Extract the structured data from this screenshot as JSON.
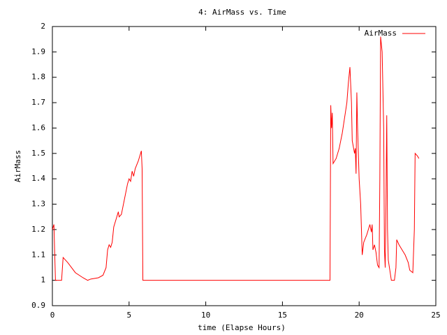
{
  "chart_data": {
    "type": "line",
    "title": "4: AirMass vs. Time",
    "xlabel": "time (Elapse Hours)",
    "ylabel": "AirMass",
    "xlim": [
      0,
      25
    ],
    "xticks": [
      0,
      5,
      10,
      15,
      20,
      25
    ],
    "ylim": [
      0.9,
      2
    ],
    "yticks": [
      0.9,
      1,
      1.1,
      1.2,
      1.3,
      1.4,
      1.5,
      1.6,
      1.7,
      1.8,
      1.9,
      2
    ],
    "legend": "top-right",
    "grid": false,
    "x": [
      0,
      0.1,
      0.2,
      0.6,
      0.7,
      1,
      1.5,
      2,
      2.3,
      2.5,
      3,
      3.3,
      3.5,
      3.6,
      3.7,
      3.8,
      3.9,
      4.0,
      4.2,
      4.3,
      4.35,
      4.5,
      4.7,
      4.9,
      5.0,
      5.1,
      5.2,
      5.3,
      5.4,
      5.6,
      5.8,
      5.85,
      5.9,
      18.1,
      18.15,
      18.2,
      18.25,
      18.3,
      18.5,
      18.7,
      18.9,
      19.0,
      19.1,
      19.2,
      19.3,
      19.4,
      19.5,
      19.55,
      19.7,
      19.75,
      19.8,
      19.85,
      19.9,
      20.0,
      20.1,
      20.2,
      20.3,
      20.5,
      20.6,
      20.7,
      20.8,
      20.85,
      20.9,
      21.0,
      21.1,
      21.2,
      21.3,
      21.35,
      21.4,
      21.5,
      21.6,
      21.65,
      21.7,
      21.75,
      21.8,
      21.85,
      21.9,
      22.0,
      22.1,
      22.3,
      22.4,
      22.45,
      22.6,
      22.8,
      23.0,
      23.2,
      23.3,
      23.5,
      23.6,
      23.65,
      23.8,
      23.9
    ],
    "series": [
      {
        "name": "AirMass",
        "color": "#ff0000",
        "values": [
          1.2,
          1.22,
          1.0,
          1.0,
          1.09,
          1.07,
          1.03,
          1.01,
          1.0,
          1.005,
          1.01,
          1.02,
          1.05,
          1.12,
          1.14,
          1.13,
          1.15,
          1.21,
          1.25,
          1.27,
          1.25,
          1.26,
          1.32,
          1.38,
          1.4,
          1.39,
          1.43,
          1.41,
          1.44,
          1.47,
          1.51,
          1.44,
          1.0,
          1.0,
          1.69,
          1.6,
          1.66,
          1.46,
          1.48,
          1.52,
          1.58,
          1.62,
          1.66,
          1.7,
          1.78,
          1.84,
          1.7,
          1.55,
          1.5,
          1.52,
          1.42,
          1.74,
          1.6,
          1.4,
          1.3,
          1.1,
          1.15,
          1.18,
          1.2,
          1.22,
          1.19,
          1.22,
          1.12,
          1.14,
          1.11,
          1.06,
          1.05,
          1.4,
          1.96,
          1.9,
          1.6,
          1.12,
          1.05,
          1.3,
          1.65,
          1.2,
          1.08,
          1.04,
          1.0,
          1.0,
          1.05,
          1.16,
          1.14,
          1.12,
          1.1,
          1.07,
          1.04,
          1.03,
          1.2,
          1.5,
          1.49,
          1.48
        ]
      }
    ]
  }
}
